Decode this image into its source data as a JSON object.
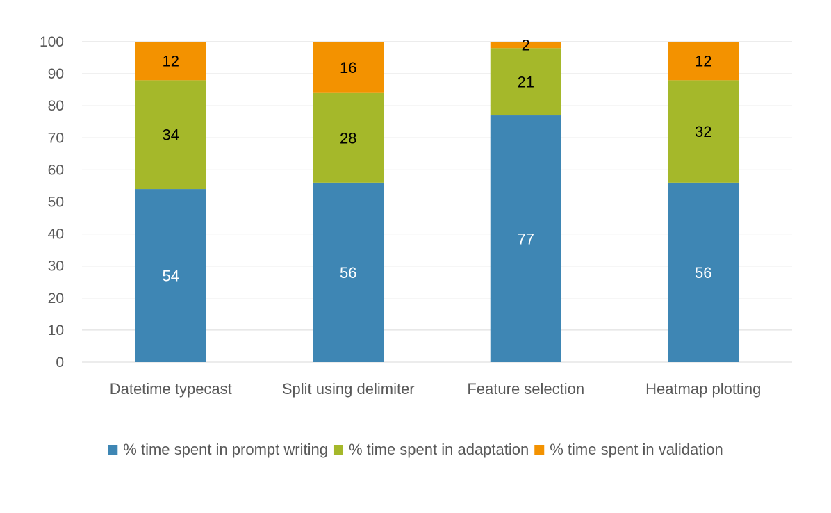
{
  "chart_data": {
    "type": "bar",
    "stacked": true,
    "title": "",
    "xlabel": "",
    "ylabel": "",
    "ylim": [
      0,
      100
    ],
    "yticks": [
      0,
      10,
      20,
      30,
      40,
      50,
      60,
      70,
      80,
      90,
      100
    ],
    "grid": true,
    "legend_position": "bottom",
    "categories": [
      "Datetime typecast",
      "Split using delimiter",
      "Feature selection",
      "Heatmap plotting"
    ],
    "series": [
      {
        "name": "% time spent in prompt writing",
        "color": "#3E86B4",
        "label_color": "#ffffff",
        "values": [
          54,
          56,
          77,
          56
        ]
      },
      {
        "name": "% time spent in adaptation",
        "color": "#A5B82A",
        "label_color": "#000000",
        "values": [
          34,
          28,
          21,
          32
        ]
      },
      {
        "name": "% time spent in validation",
        "color": "#F39200",
        "label_color": "#000000",
        "values": [
          12,
          16,
          2,
          12
        ]
      }
    ]
  }
}
